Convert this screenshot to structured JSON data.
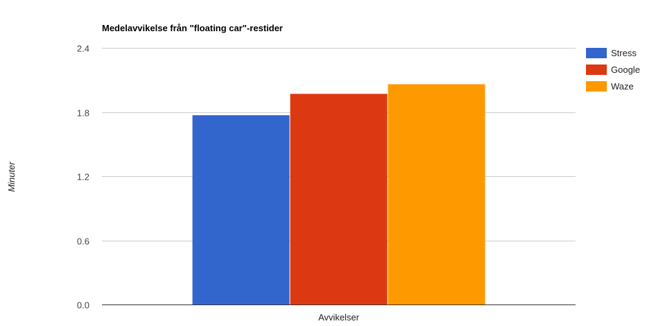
{
  "chart_data": {
    "type": "bar",
    "title": "Medelavvikelse från \"floating car\"-restider",
    "xlabel": "",
    "ylabel": "Minuter",
    "categories": [
      "Avvikelser"
    ],
    "series": [
      {
        "name": "Stress",
        "values": [
          1.77
        ],
        "color": "#3366cc"
      },
      {
        "name": "Google",
        "values": [
          1.97
        ],
        "color": "#dc3912"
      },
      {
        "name": "Waze",
        "values": [
          2.06
        ],
        "color": "#ff9900"
      }
    ],
    "ylim": [
      0,
      2.4
    ],
    "yticks": [
      "0.0",
      "0.6",
      "1.2",
      "1.8",
      "2.4"
    ],
    "grid": true,
    "legend": "right"
  }
}
